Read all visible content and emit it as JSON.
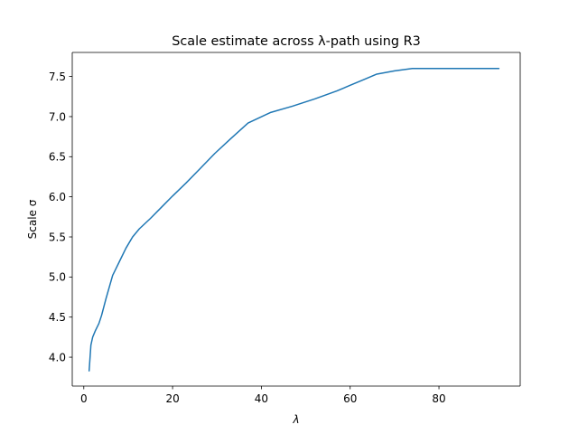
{
  "chart_data": {
    "type": "line",
    "title": "Scale estimate across λ-path using R3",
    "xlabel": "λ",
    "ylabel": "Scale σ",
    "xlim": [
      -2.6,
      98.3
    ],
    "ylim": [
      3.64,
      7.8
    ],
    "xticks": [
      0,
      20,
      40,
      60,
      80
    ],
    "xtick_labels": [
      "0",
      "20",
      "40",
      "60",
      "80"
    ],
    "yticks": [
      4.0,
      4.5,
      5.0,
      5.5,
      6.0,
      6.5,
      7.0,
      7.5
    ],
    "ytick_labels": [
      "4.0",
      "4.5",
      "5.0",
      "5.5",
      "6.0",
      "6.5",
      "7.0",
      "7.5"
    ],
    "grid": false,
    "legend": "none",
    "series": [
      {
        "color": "#1f77b4",
        "x": [
          1.2,
          1.6,
          2.0,
          2.6,
          3.4,
          4.0,
          5.0,
          6.5,
          8.0,
          9.5,
          11.0,
          12.5,
          15.0,
          17.5,
          20.0,
          23.0,
          26.0,
          29.5,
          33.0,
          37.0,
          42.0,
          47.0,
          52.0,
          57.0,
          60.0,
          63.0,
          66.0,
          70.0,
          74.0,
          78.0,
          82.0,
          86.0,
          90.0,
          93.5
        ],
        "y": [
          3.83,
          4.15,
          4.25,
          4.33,
          4.42,
          4.52,
          4.73,
          5.02,
          5.19,
          5.36,
          5.5,
          5.6,
          5.73,
          5.87,
          6.01,
          6.17,
          6.34,
          6.54,
          6.72,
          6.92,
          7.05,
          7.13,
          7.22,
          7.32,
          7.39,
          7.46,
          7.53,
          7.57,
          7.6,
          7.6,
          7.6,
          7.6,
          7.6,
          7.6
        ]
      }
    ]
  }
}
